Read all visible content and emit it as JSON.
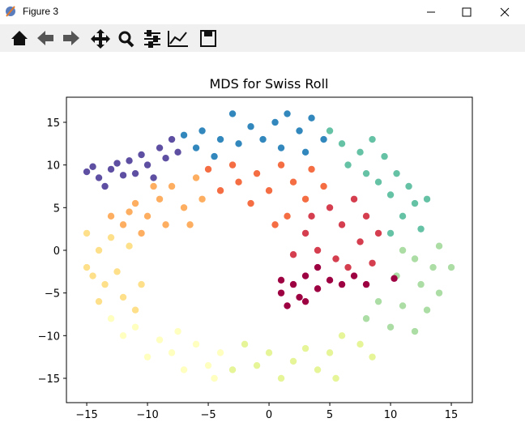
{
  "window_title": "Figure 3",
  "chart_data": {
    "type": "scatter",
    "title": "MDS for Swiss Roll",
    "xlim": [
      -16.67,
      16.73
    ],
    "ylim": [
      -17.85,
      17.94
    ],
    "xticks": [
      {
        "value": -15,
        "label": "−15"
      },
      {
        "value": -10,
        "label": "−10"
      },
      {
        "value": -5,
        "label": "−5"
      },
      0,
      5,
      10,
      15
    ],
    "yticks": [
      {
        "value": -15,
        "label": "−15"
      },
      {
        "value": -10,
        "label": "−10"
      },
      {
        "value": -5,
        "label": "−5"
      },
      0,
      5,
      10,
      15
    ],
    "series": [
      {
        "color": "#5e4fa2",
        "x": [
          -15,
          -14,
          -13.5,
          -13,
          -12,
          -11.5,
          -11,
          -10.5,
          -10,
          -9.5,
          -9,
          -8.5,
          -8,
          -7.5,
          -14.5,
          -12.5
        ],
        "values": [
          9.2,
          8.5,
          7.5,
          9.5,
          8.8,
          10.5,
          9,
          11.2,
          10,
          8.5,
          12,
          10.8,
          13,
          11.5,
          9.8,
          10.2
        ]
      },
      {
        "color": "#3288bd",
        "x": [
          -7,
          -6,
          -5.5,
          -4.5,
          -4,
          -3,
          -2.5,
          -1.5,
          -0.5,
          0.5,
          1,
          1.5,
          2.5,
          3,
          3.5,
          4.5
        ],
        "values": [
          13.5,
          12,
          14,
          11,
          13,
          16,
          12.5,
          14.5,
          13,
          15,
          12,
          16,
          14,
          11.5,
          15.5,
          13
        ]
      },
      {
        "color": "#66c2a5",
        "x": [
          5,
          6,
          6.5,
          7.5,
          8,
          8.5,
          9,
          9.5,
          10,
          10.5,
          11,
          11.5,
          12,
          12.5,
          10,
          13
        ],
        "values": [
          14,
          12.5,
          10,
          11.5,
          9,
          13,
          8,
          11,
          6.5,
          9,
          4,
          7.5,
          5.5,
          2.5,
          2,
          6
        ]
      },
      {
        "color": "#abdda4",
        "x": [
          11,
          12,
          13.5,
          10.5,
          12.5,
          14,
          9,
          11,
          13,
          8,
          10,
          12,
          15,
          14
        ],
        "values": [
          0,
          -1,
          -2,
          -3,
          -4,
          -5,
          -6,
          -6.5,
          -7,
          -8,
          -9,
          -9.5,
          -2,
          0.5
        ]
      },
      {
        "color": "#e6f598",
        "x": [
          6,
          7.5,
          5,
          4,
          3,
          2,
          1,
          0,
          -1,
          -2,
          8.5,
          5.5,
          -3
        ],
        "values": [
          -10,
          -11,
          -12,
          -14,
          -11.5,
          -13,
          -15,
          -12,
          -13.5,
          -11,
          -12.5,
          -15,
          -14
        ]
      },
      {
        "color": "#ffffbf",
        "x": [
          -4,
          -5,
          -6,
          -7,
          -8,
          -9,
          -10,
          -11,
          -12,
          -13,
          -4.5,
          -7.5
        ],
        "values": [
          -12,
          -13.5,
          -11,
          -14,
          -12,
          -10.5,
          -12.5,
          -9,
          -10,
          -8,
          -15,
          -9.5
        ]
      },
      {
        "color": "#fee08b",
        "x": [
          -14,
          -13.5,
          -15,
          -12.5,
          -14,
          -13,
          -15,
          -12,
          -11.5,
          -14.5,
          -11,
          -10.5
        ],
        "values": [
          -6,
          -4,
          -2,
          -2.5,
          0,
          1.5,
          2,
          -5.5,
          0.5,
          -3,
          -7,
          -4
        ]
      },
      {
        "color": "#fdae61",
        "x": [
          -13,
          -12,
          -11,
          -10.5,
          -10,
          -9,
          -8.5,
          -8,
          -7,
          -6,
          -5.5,
          -9.5,
          -11.5,
          -6.5
        ],
        "values": [
          4,
          3,
          5.5,
          2,
          4,
          6,
          3,
          7.5,
          5,
          8.5,
          6,
          7.5,
          4.5,
          3
        ]
      },
      {
        "color": "#f46d43",
        "x": [
          -5,
          -4,
          -3,
          -2.5,
          -1.5,
          -1,
          0,
          1,
          1.5,
          2,
          3,
          3.5,
          4.5,
          0.5
        ],
        "values": [
          9.5,
          7,
          10,
          8,
          5.5,
          9,
          7,
          10,
          4,
          8,
          6,
          9.5,
          7.5,
          3
        ]
      },
      {
        "color": "#d53e4f",
        "x": [
          5,
          6,
          7,
          7.5,
          8,
          3,
          4,
          5.5,
          6.5,
          8.5,
          2,
          3.5,
          9
        ],
        "values": [
          5,
          3,
          6,
          1,
          4,
          2,
          0,
          -1,
          -2,
          -1.5,
          -0.5,
          4,
          2
        ]
      },
      {
        "color": "#9e0142",
        "x": [
          1,
          1.5,
          2,
          2.5,
          3,
          4,
          4,
          5,
          6,
          7,
          8,
          1,
          10.3,
          3
        ],
        "values": [
          -5,
          -6.5,
          -4,
          -5.5,
          -3,
          -2,
          -4.5,
          -3.5,
          -4,
          -3,
          -4,
          -3.5,
          -3.3,
          -6
        ]
      }
    ]
  }
}
